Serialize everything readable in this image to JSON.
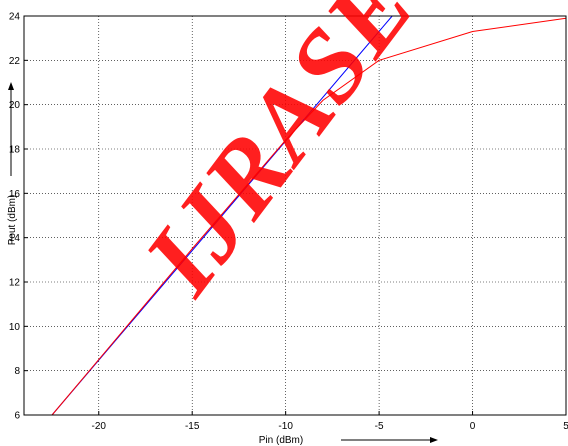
{
  "chart_data": {
    "type": "line",
    "title": "",
    "xlabel": "Pin (dBm)",
    "ylabel": "Pout (dBm)",
    "xlim": [
      -24,
      5
    ],
    "ylim": [
      6,
      24
    ],
    "xticks": [
      -20,
      -15,
      -10,
      -5,
      0,
      5
    ],
    "yticks": [
      6,
      8,
      10,
      12,
      14,
      16,
      18,
      20,
      22,
      24
    ],
    "grid": true,
    "legend": null,
    "series": [
      {
        "color": "#0000ff",
        "x": [
          -22.5,
          -4.3
        ],
        "y": [
          6.0,
          24.0
        ]
      },
      {
        "color": "#ff0000",
        "x": [
          -22.5,
          -20,
          -15,
          -10,
          -8,
          -5,
          0,
          5
        ],
        "y": [
          6.0,
          8.5,
          13.5,
          18.4,
          20.2,
          22.0,
          23.3,
          23.9
        ]
      }
    ],
    "watermark": {
      "text": "IJRASET",
      "color": "#ff0000"
    }
  }
}
